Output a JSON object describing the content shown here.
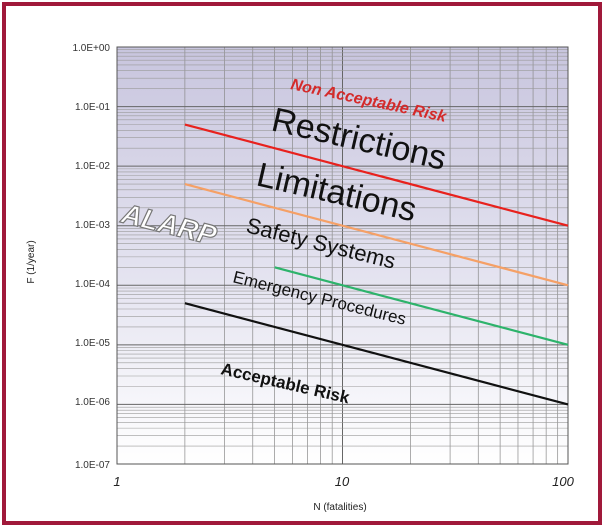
{
  "chart_data": {
    "type": "line",
    "xlabel": "N (fatalities)",
    "ylabel": "F (1/year)",
    "x_scale": "log",
    "y_scale": "log",
    "xlim": [
      1,
      100
    ],
    "ylim": [
      1e-07,
      1
    ],
    "grid": true,
    "x_ticks": [
      "1",
      "10",
      "100"
    ],
    "y_ticks": [
      "1.0E+00",
      "1.0E-01",
      "1.0E-02",
      "1.0E-03",
      "1.0E-04",
      "1.0E-05",
      "1.0E-06",
      "1.0E-07"
    ],
    "series": [
      {
        "color": "#e8211d",
        "x": [
          2,
          100
        ],
        "y": [
          0.05,
          0.001
        ]
      },
      {
        "color": "#f5a066",
        "x": [
          2,
          100
        ],
        "y": [
          0.005,
          0.0001
        ]
      },
      {
        "color": "#2db36b",
        "x": [
          5,
          100
        ],
        "y": [
          0.0002,
          1e-05
        ]
      },
      {
        "color": "#111111",
        "x": [
          2,
          100
        ],
        "y": [
          5e-05,
          1e-06
        ]
      }
    ],
    "annotations": {
      "non_acceptable": "Non Acceptable Risk",
      "restrictions": "Restrictions",
      "limitations": "Limitations",
      "alarp": "ALARP",
      "safety_systems": "Safety Systems",
      "emergency": "Emergency Procedures",
      "acceptable": "Acceptable Risk"
    }
  },
  "colors": {
    "frame": "#a0193a",
    "band_top": "#c9c6dd",
    "band_bottom": "#ffffff",
    "non_acceptable": "#d42a2a"
  }
}
